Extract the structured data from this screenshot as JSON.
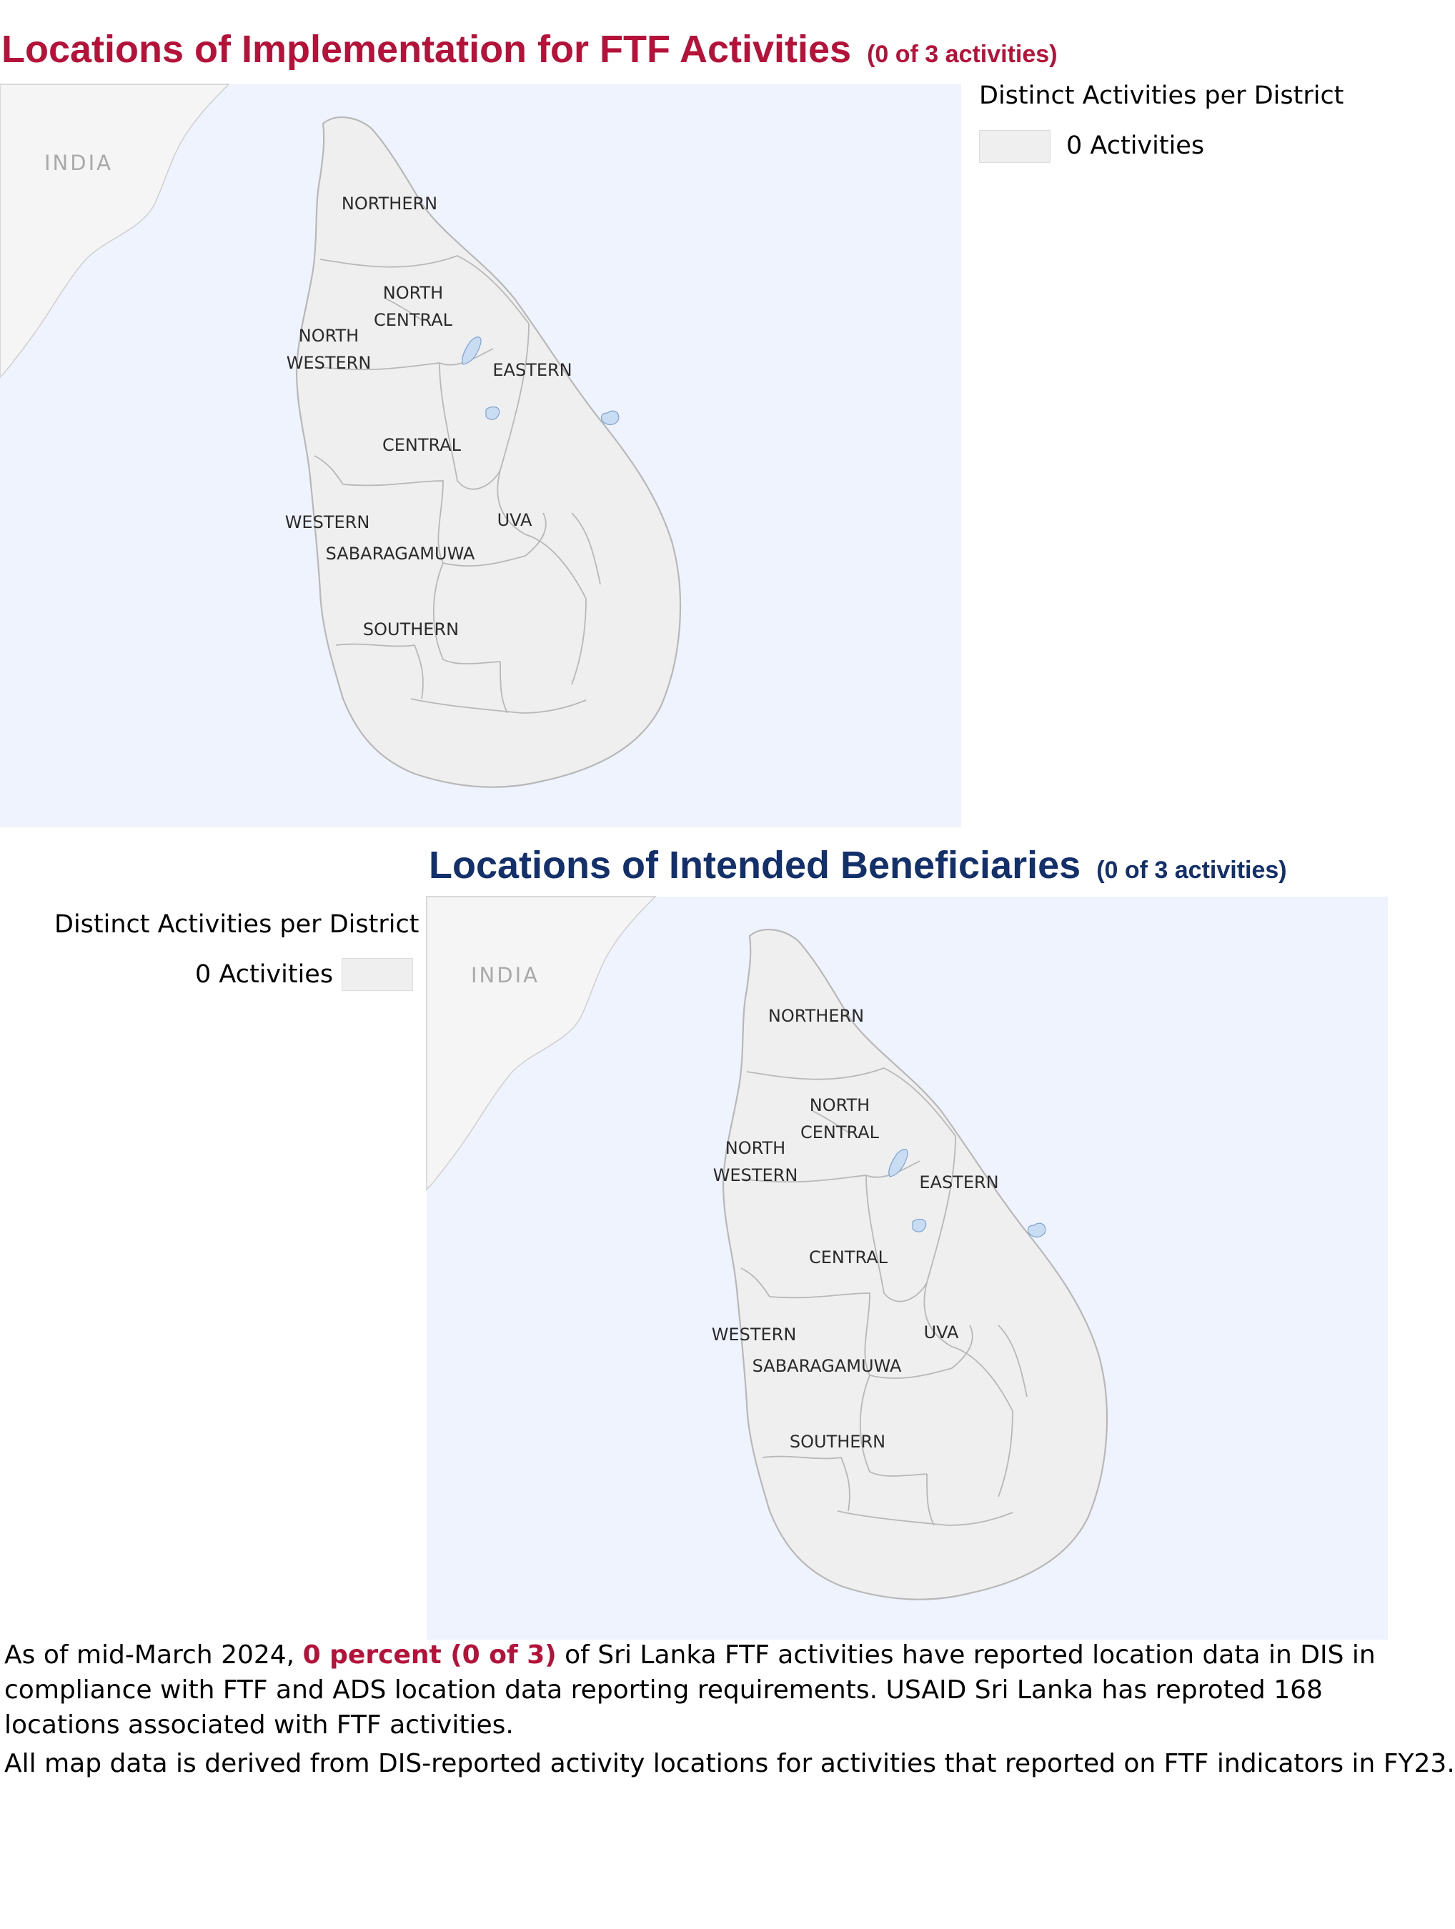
{
  "top_title": {
    "main": "Locations of Implementation for FTF Activities",
    "count": "(0 of 3 activities)"
  },
  "bottom_title": {
    "main": "Locations of Intended Beneficiaries",
    "count": "(0 of 3 activities)"
  },
  "legend": {
    "title": "Distinct Activities per District",
    "items": [
      {
        "label": "0 Activities",
        "color": "#efefef"
      }
    ]
  },
  "map": {
    "country_label": "INDIA",
    "ocean_color": "#eef3fd",
    "land_color": "#efefef",
    "neighbor_color": "#f5f5f5",
    "lake_color": "#c8dcf2",
    "regions": [
      {
        "label_lines": [
          "NORTHERN"
        ]
      },
      {
        "label_lines": [
          "NORTH",
          "CENTRAL"
        ]
      },
      {
        "label_lines": [
          "NORTH",
          "WESTERN"
        ]
      },
      {
        "label_lines": [
          "EASTERN"
        ]
      },
      {
        "label_lines": [
          "CENTRAL"
        ]
      },
      {
        "label_lines": [
          "WESTERN"
        ]
      },
      {
        "label_lines": [
          "UVA"
        ]
      },
      {
        "label_lines": [
          "SABARAGAMUWA"
        ]
      },
      {
        "label_lines": [
          "SOUTHERN"
        ]
      }
    ]
  },
  "summary": {
    "prefix": "As of mid-March 2024,",
    "highlight": "0 percent (0 of 3)",
    "suffix": "of Sri Lanka FTF activities have reported location data in DIS in compliance with FTF and ADS location data reporting requirements. USAID Sri Lanka has reproted 168 locations associated with FTF activities."
  },
  "footnote": "All map data is derived from DIS-reported activity locations for activities that reported on FTF indicators in FY23."
}
